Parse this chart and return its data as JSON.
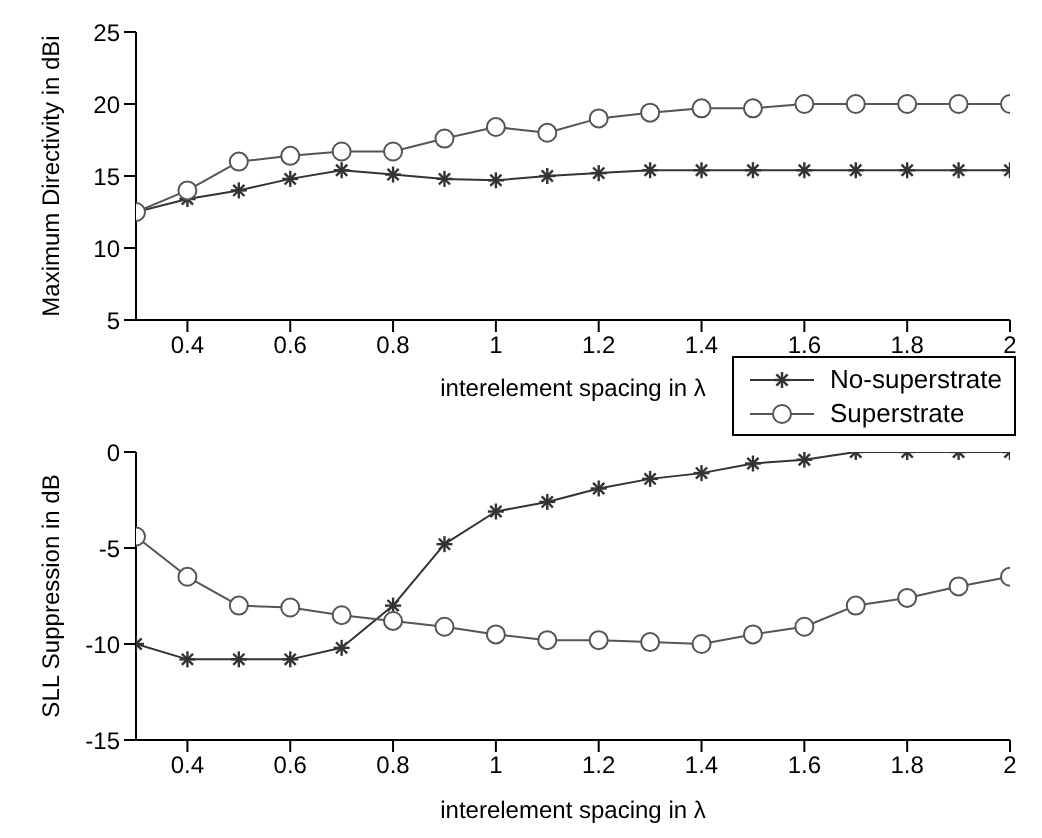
{
  "chart_data": [
    {
      "type": "line",
      "ylabel": "Maximum Directivity in dBi",
      "xlabel": "interelement spacing in λ",
      "x": [
        0.3,
        0.4,
        0.5,
        0.6,
        0.7,
        0.8,
        0.9,
        1,
        1.1,
        1.2,
        1.3,
        1.4,
        1.5,
        1.6,
        1.7,
        1.8,
        1.9,
        2
      ],
      "xlim": [
        0.3,
        2
      ],
      "xticks": [
        0.4,
        0.6,
        0.8,
        1,
        1.2,
        1.4,
        1.6,
        1.8,
        2
      ],
      "ylim": [
        5,
        25
      ],
      "yticks": [
        5,
        10,
        15,
        20,
        25
      ],
      "legend": "bottom right",
      "series": [
        {
          "name": "No-superstrate",
          "color": "#333333",
          "marker": "cross",
          "values": [
            12.5,
            13.4,
            14,
            14.8,
            15.4,
            15.1,
            14.8,
            14.7,
            15,
            15.2,
            15.4,
            15.4,
            15.4,
            15.4,
            15.4,
            15.4,
            15.4,
            15.4
          ]
        },
        {
          "name": "Superstrate",
          "color": "#555555",
          "marker": "circle",
          "values": [
            12.5,
            14,
            16,
            16.4,
            16.7,
            16.7,
            17.6,
            18.4,
            18,
            19,
            19.4,
            19.7,
            19.7,
            20,
            20,
            20,
            20,
            20
          ]
        }
      ]
    },
    {
      "type": "line",
      "ylabel": "SLL Suppression in dB",
      "xlabel": "interelement spacing in λ",
      "x": [
        0.3,
        0.4,
        0.5,
        0.6,
        0.7,
        0.8,
        0.9,
        1,
        1.1,
        1.2,
        1.3,
        1.4,
        1.5,
        1.6,
        1.7,
        1.8,
        1.9,
        2
      ],
      "xlim": [
        0.3,
        2
      ],
      "xticks": [
        0.4,
        0.6,
        0.8,
        1,
        1.2,
        1.4,
        1.6,
        1.8,
        2
      ],
      "ylim": [
        -15,
        0
      ],
      "yticks": [
        -15,
        -10,
        -5,
        0
      ],
      "series": [
        {
          "color": "#333333",
          "marker": "cross",
          "values": [
            -10,
            -10.8,
            -10.8,
            -10.8,
            -10.2,
            -8,
            -4.8,
            -3.1,
            -2.6,
            -1.9,
            -1.4,
            -1.1,
            -0.6,
            -0.4,
            0,
            0,
            0,
            0
          ]
        },
        {
          "color": "#555555",
          "marker": "circle",
          "values": [
            -4.4,
            -6.5,
            -8,
            -8.1,
            -8.5,
            -8.8,
            -9.1,
            -9.5,
            -9.8,
            -9.8,
            -9.9,
            -10,
            -9.5,
            -9.1,
            -8,
            -7.6,
            -7,
            -6.5
          ]
        }
      ]
    }
  ]
}
